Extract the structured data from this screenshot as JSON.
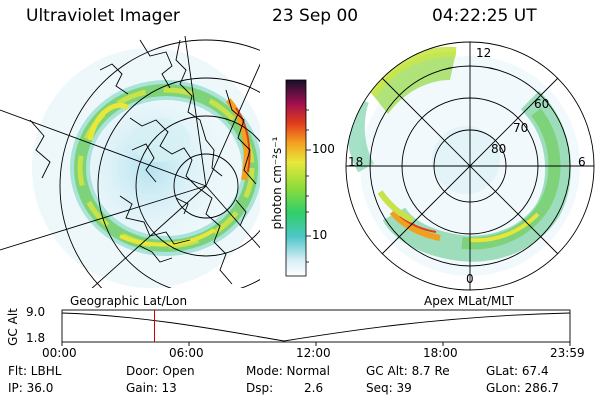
{
  "header": {
    "instrument": "Ultraviolet Imager",
    "date": "23 Sep 00",
    "time": "04:22:25 UT"
  },
  "colorbar": {
    "label_html": "photon cm⁻²s⁻¹",
    "ticks": [
      "100",
      "10"
    ]
  },
  "left_map": {
    "caption": "Geographic Lat/Lon"
  },
  "right_map": {
    "caption": "Apex MLat/MLT",
    "mlt_labels": [
      "12",
      "18",
      "6",
      "0"
    ],
    "lat_labels": [
      "60",
      "70",
      "80"
    ]
  },
  "timeline": {
    "ylabel": "GC Alt",
    "y_max": "9.0",
    "y_min": "1.8",
    "x_ticks": [
      "00:00",
      "06:00",
      "12:00",
      "18:00",
      "23:59"
    ],
    "cursor_time_hours": 4.37,
    "cursor_color": "#cc0000"
  },
  "info": {
    "row1": {
      "flt": "Flt: LBHL",
      "door": "Door: Open",
      "mode": "Mode: Normal",
      "gcalt": "GC Alt: 8.7 Re",
      "glat": "GLat: 67.4"
    },
    "row2": {
      "ip": "IP: 36.0",
      "gain": "Gain: 13",
      "dsp_label": "Dsp:",
      "dsp_value": "2.6",
      "seq": "Seq: 39",
      "glon": "GLon: 286.7"
    }
  }
}
